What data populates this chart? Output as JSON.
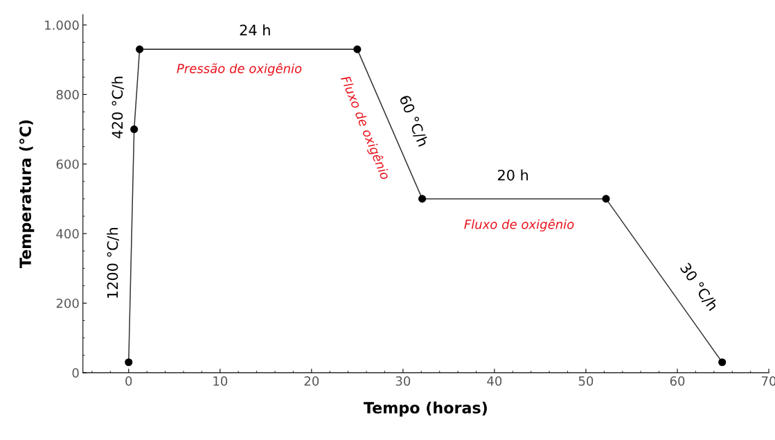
{
  "chart_data": {
    "type": "line",
    "xlabel": "Tempo (horas)",
    "ylabel": "Temperatura (°C)",
    "x": [
      0,
      0.6,
      1.2,
      25,
      32.1,
      52.2,
      64.9
    ],
    "series": [
      {
        "color": "#333333",
        "values": [
          30,
          700,
          930,
          930,
          500,
          500,
          30
        ]
      }
    ],
    "marker": "circle",
    "line_style": "solid",
    "grid": false,
    "legend": false,
    "xlim": [
      -5,
      70
    ],
    "xticks": [
      0,
      10,
      20,
      30,
      40,
      50,
      60,
      70
    ],
    "ylim": [
      0,
      1030
    ],
    "yticks": [
      0,
      200,
      400,
      600,
      800,
      {
        "value": 1000,
        "label": "1.000"
      }
    ],
    "annotations": [
      "24 h",
      "Pressão de oxigênio",
      "420 °C/h",
      "1200 °C/h",
      "Fluxo de oxigênio",
      "60 °C/h",
      "20 h",
      "Fluxo de oxigênio",
      "30 °C/h"
    ]
  }
}
